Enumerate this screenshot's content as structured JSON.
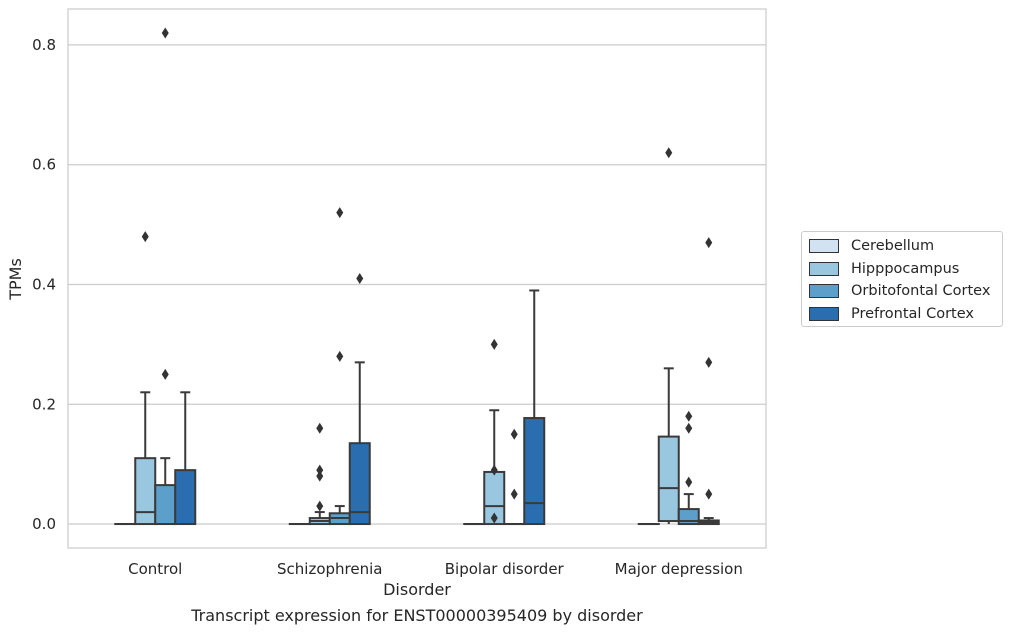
{
  "chart_data": {
    "type": "box",
    "xlabel": "Disorder",
    "ylabel": "TPMs",
    "caption": "Transcript expression for ENST00000395409 by disorder",
    "ylim": [
      -0.04,
      0.86
    ],
    "yticks": [
      {
        "value": 0.0,
        "label": "0.0"
      },
      {
        "value": 0.2,
        "label": "0.2"
      },
      {
        "value": 0.4,
        "label": "0.4"
      },
      {
        "value": 0.6,
        "label": "0.6"
      },
      {
        "value": 0.8,
        "label": "0.8"
      }
    ],
    "grid": "horizontal",
    "legend_position": "right",
    "categories": [
      "Control",
      "Schizophrenia",
      "Bipolar disorder",
      "Major depression"
    ],
    "series": [
      {
        "name": "Cerebellum",
        "color": "#d1e2f2",
        "boxes": [
          {
            "q1": 0,
            "median": 0,
            "q3": 0,
            "whisker_low": 0,
            "whisker_high": 0,
            "fliers": []
          },
          {
            "q1": 0,
            "median": 0,
            "q3": 0,
            "whisker_low": 0,
            "whisker_high": 0,
            "fliers": []
          },
          {
            "q1": 0,
            "median": 0,
            "q3": 0,
            "whisker_low": 0,
            "whisker_high": 0,
            "fliers": []
          },
          {
            "q1": 0,
            "median": 0,
            "q3": 0,
            "whisker_low": 0,
            "whisker_high": 0,
            "fliers": []
          }
        ]
      },
      {
        "name": "Hipppocampus",
        "color": "#9ac7e0",
        "boxes": [
          {
            "q1": 0,
            "median": 0.02,
            "q3": 0.11,
            "whisker_low": 0,
            "whisker_high": 0.22,
            "fliers": [
              0.48
            ]
          },
          {
            "q1": 0,
            "median": 0.005,
            "q3": 0.01,
            "whisker_low": 0,
            "whisker_high": 0.02,
            "fliers": [
              0.03,
              0.08,
              0.09,
              0.16
            ]
          },
          {
            "q1": 0,
            "median": 0.03,
            "q3": 0.087,
            "whisker_low": 0,
            "whisker_high": 0.19,
            "fliers": [
              0.01,
              0.09,
              0.3
            ]
          },
          {
            "q1": 0.005,
            "median": 0.06,
            "q3": 0.146,
            "whisker_low": 0,
            "whisker_high": 0.26,
            "fliers": [
              0.62
            ]
          }
        ]
      },
      {
        "name": "Orbitofontal Cortex",
        "color": "#5c9fca",
        "boxes": [
          {
            "q1": 0,
            "median": 0.0,
            "q3": 0.065,
            "whisker_low": 0,
            "whisker_high": 0.11,
            "fliers": [
              0.25,
              0.82
            ]
          },
          {
            "q1": 0,
            "median": 0.01,
            "q3": 0.018,
            "whisker_low": 0,
            "whisker_high": 0.03,
            "fliers": [
              0.28,
              0.52
            ]
          },
          {
            "q1": 0,
            "median": 0,
            "q3": 0,
            "whisker_low": 0,
            "whisker_high": 0,
            "fliers": [
              0.05,
              0.15
            ]
          },
          {
            "q1": 0,
            "median": 0.005,
            "q3": 0.025,
            "whisker_low": 0,
            "whisker_high": 0.05,
            "fliers": [
              0.07,
              0.16,
              0.18
            ]
          }
        ]
      },
      {
        "name": "Prefrontal Cortex",
        "color": "#2a6eb0",
        "boxes": [
          {
            "q1": 0,
            "median": 0.0,
            "q3": 0.09,
            "whisker_low": 0,
            "whisker_high": 0.22,
            "fliers": []
          },
          {
            "q1": 0,
            "median": 0.02,
            "q3": 0.135,
            "whisker_low": 0,
            "whisker_high": 0.27,
            "fliers": [
              0.41
            ]
          },
          {
            "q1": 0,
            "median": 0.035,
            "q3": 0.177,
            "whisker_low": 0,
            "whisker_high": 0.39,
            "fliers": []
          },
          {
            "q1": 0,
            "median": 0.003,
            "q3": 0.006,
            "whisker_low": 0,
            "whisker_high": 0.01,
            "fliers": [
              0.05,
              0.27,
              0.47
            ]
          }
        ]
      }
    ]
  }
}
